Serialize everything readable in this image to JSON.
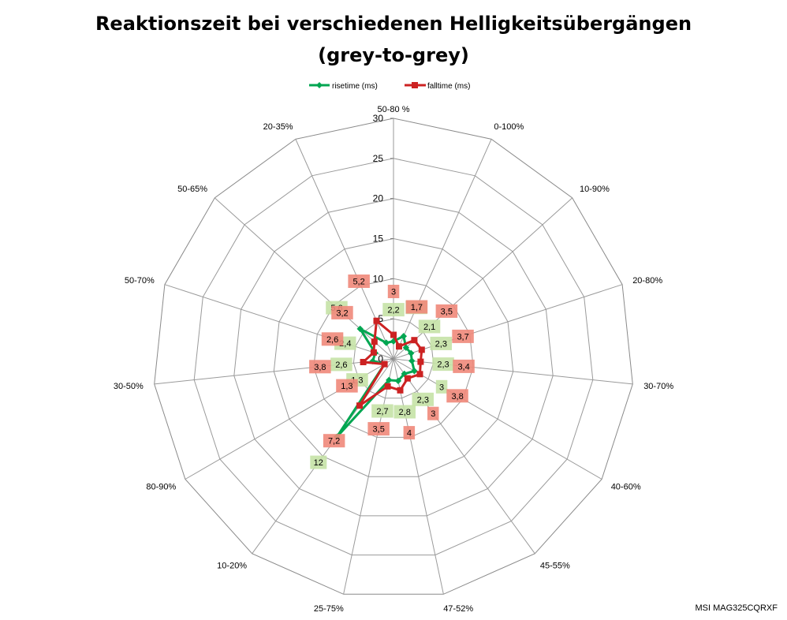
{
  "chart_data": {
    "type": "radar",
    "title": "Reaktionszeit bei verschiedenen Helligkeitsübergängen",
    "subtitle": "(grey-to-grey)",
    "categories": [
      "50-80 %",
      "0-100%",
      "10-90%",
      "20-80%",
      "30-70%",
      "40-60%",
      "45-55%",
      "47-52%",
      "25-75%",
      "10-20%",
      "80-90%",
      "30-50%",
      "50-70%",
      "50-65%",
      "20-35%"
    ],
    "r_range": [
      0,
      30
    ],
    "r_ticks": [
      "0",
      "5",
      "10",
      "15",
      "20",
      "25",
      "30"
    ],
    "grid": true,
    "legend_position": "top",
    "series": [
      {
        "name": "risetime (ms)",
        "color": "#00A651",
        "marker": "diamond",
        "values": [
          2.2,
          3.1,
          2.1,
          2.3,
          2.3,
          3,
          2.3,
          2.8,
          2.7,
          12,
          1.3,
          2.6,
          2.4,
          5.6,
          2.2
        ],
        "labels": [
          "2,2",
          "3,1",
          "2,1",
          "2,3",
          "2,3",
          "3",
          "2,3",
          "2,8",
          "2,7",
          "12",
          "1,3",
          "2,6",
          "2,4",
          "5,6",
          ""
        ]
      },
      {
        "name": "falltime (ms)",
        "color": "#CC2222",
        "marker": "square",
        "values": [
          3,
          1.7,
          3.5,
          3.7,
          3.4,
          3.8,
          3,
          4,
          3.5,
          7.2,
          1.3,
          3.8,
          2.6,
          3.2,
          5.2
        ],
        "labels": [
          "3",
          "1,7",
          "3,5",
          "3,7",
          "3,4",
          "3,8",
          "3",
          "4",
          "3,5",
          "7,2",
          "1,3",
          "3,8",
          "2,6",
          "3,2",
          "5,2"
        ]
      }
    ]
  },
  "footer": "MSI MAG325CQRXF"
}
